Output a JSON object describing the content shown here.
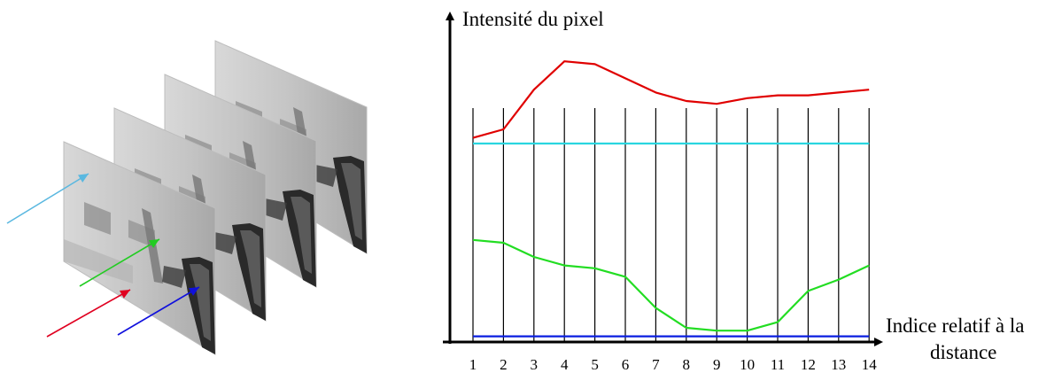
{
  "chart_data": {
    "type": "line",
    "ylabel": "Intensité du pixel",
    "xlabel_line1": "Indice relatif à la",
    "xlabel_line2": "distance",
    "ticks": [
      "1",
      "2",
      "3",
      "4",
      "5",
      "6",
      "7",
      "8",
      "9",
      "10",
      "11",
      "12",
      "13",
      "14"
    ],
    "x": [
      1,
      2,
      3,
      4,
      5,
      6,
      7,
      8,
      9,
      10,
      11,
      12,
      13,
      14
    ],
    "series": [
      {
        "color": "#e00000",
        "values": [
          0.72,
          0.75,
          0.89,
          0.99,
          0.98,
          0.93,
          0.88,
          0.85,
          0.84,
          0.86,
          0.87,
          0.87,
          0.88,
          0.89
        ]
      },
      {
        "color": "#29d6e0",
        "values": [
          0.7,
          0.7,
          0.7,
          0.7,
          0.7,
          0.7,
          0.7,
          0.7,
          0.7,
          0.7,
          0.7,
          0.7,
          0.7,
          0.7
        ]
      },
      {
        "color": "#22dd22",
        "values": [
          0.36,
          0.35,
          0.3,
          0.27,
          0.26,
          0.23,
          0.12,
          0.05,
          0.04,
          0.04,
          0.07,
          0.18,
          0.22,
          0.27
        ]
      },
      {
        "color": "#0a1ee0",
        "values": [
          0.02,
          0.02,
          0.02,
          0.02,
          0.02,
          0.02,
          0.02,
          0.02,
          0.02,
          0.02,
          0.02,
          0.02,
          0.02,
          0.02
        ]
      }
    ],
    "ylim": [
      0,
      1.05
    ],
    "grid": "vertical lines at each index"
  },
  "frames": {
    "count": 4,
    "arrow_colors": [
      "#5ab8e0",
      "#22cc22",
      "#e00020",
      "#1010dd"
    ]
  }
}
